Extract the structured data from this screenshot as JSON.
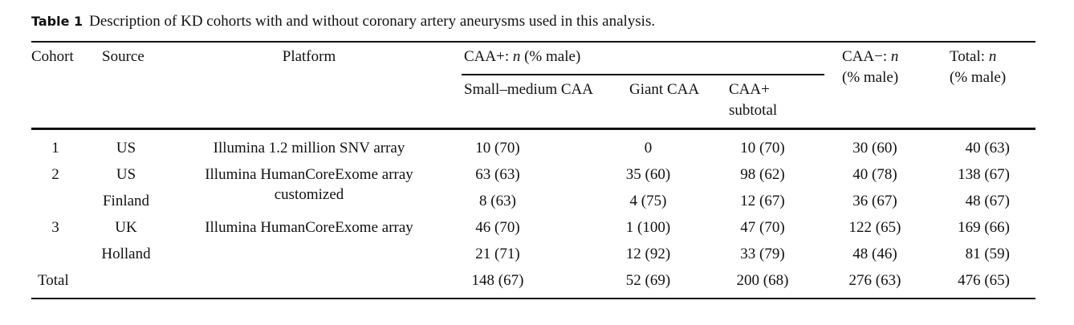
{
  "caption": {
    "label": "Table 1",
    "text": "Description of KD cohorts with and without coronary artery aneurysms used in this analysis."
  },
  "headers": {
    "cohort": "Cohort",
    "source": "Source",
    "platform": "Platform",
    "caa_pos_group_a": "CAA+: ",
    "caa_pos_group_n": "n",
    "caa_pos_group_b": " (% male)",
    "small_medium": "Small–medium CAA",
    "giant": "Giant CAA",
    "subtotal_1": "CAA+",
    "subtotal_2": "subtotal",
    "caa_neg_a": "CAA−: ",
    "caa_neg_n": "n",
    "caa_neg_b": "(% male)",
    "total_a": "Total: ",
    "total_n": "n",
    "total_b": "(% male)"
  },
  "rows": [
    {
      "cohort": "1",
      "source": "US",
      "platform": "Illumina 1.2 million SNV array",
      "platform2": "",
      "small": "10 (70)",
      "giant": "0",
      "subtotal": "10 (70)",
      "neg": "30 (60)",
      "total": "40 (63)"
    },
    {
      "cohort": "2",
      "source": "US",
      "platform": "Illumina HumanCoreExome array",
      "platform2": "customized",
      "small": "63 (63)",
      "giant": "35 (60)",
      "subtotal": "98 (62)",
      "neg": "40 (78)",
      "total": "138 (67)"
    },
    {
      "cohort": "",
      "source": "Finland",
      "platform": "",
      "platform2": "",
      "small": "8 (63)",
      "giant": "4 (75)",
      "subtotal": "12 (67)",
      "neg": "36 (67)",
      "total": "48 (67)"
    },
    {
      "cohort": "3",
      "source": "UK",
      "platform": "Illumina HumanCoreExome array",
      "platform2": "",
      "small": "46 (70)",
      "giant": "1 (100)",
      "subtotal": "47 (70)",
      "neg": "122 (65)",
      "total": "169 (66)"
    },
    {
      "cohort": "",
      "source": "Holland",
      "platform": "",
      "platform2": "",
      "small": "21 (71)",
      "giant": "12 (92)",
      "subtotal": "33 (79)",
      "neg": "48 (46)",
      "total": "81 (59)"
    },
    {
      "cohort": "Total",
      "source": "",
      "platform": "",
      "platform2": "",
      "small": "148 (67)",
      "giant": "52 (69)",
      "subtotal": "200 (68)",
      "neg": "276 (63)",
      "total": "476 (65)"
    }
  ]
}
